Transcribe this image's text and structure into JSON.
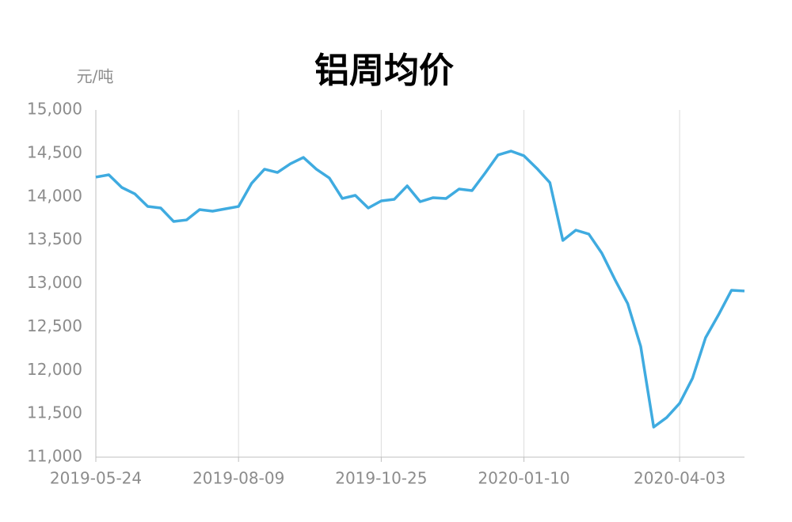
{
  "chart_data": {
    "type": "line",
    "title": "铝周均价",
    "y_label": "元/吨",
    "x": [
      "2019-05-24",
      "2019-05-31",
      "2019-06-07",
      "2019-06-14",
      "2019-06-21",
      "2019-06-28",
      "2019-07-05",
      "2019-07-12",
      "2019-07-19",
      "2019-07-26",
      "2019-08-02",
      "2019-08-09",
      "2019-08-16",
      "2019-08-23",
      "2019-08-30",
      "2019-09-06",
      "2019-09-13",
      "2019-09-20",
      "2019-09-27",
      "2019-10-04",
      "2019-10-11",
      "2019-10-18",
      "2019-10-25",
      "2019-11-01",
      "2019-11-08",
      "2019-11-15",
      "2019-11-22",
      "2019-11-29",
      "2019-12-06",
      "2019-12-13",
      "2019-12-20",
      "2019-12-27",
      "2020-01-03",
      "2020-01-10",
      "2020-01-17",
      "2020-01-24",
      "2020-01-31",
      "2020-02-07",
      "2020-02-14",
      "2020-02-21",
      "2020-02-28",
      "2020-03-06",
      "2020-03-13",
      "2020-03-20",
      "2020-03-27",
      "2020-04-03",
      "2020-04-10",
      "2020-04-17",
      "2020-04-24",
      "2020-05-01",
      "2020-05-08"
    ],
    "series": [
      {
        "color": "#3fabe0",
        "values": [
          14226,
          14253,
          14107,
          14034,
          13888,
          13870,
          13715,
          13733,
          13852,
          13834,
          13861,
          13888,
          14153,
          14317,
          14280,
          14380,
          14453,
          14317,
          14216,
          13980,
          14016,
          13870,
          13952,
          13970,
          14125,
          13943,
          13989,
          13980,
          14089,
          14071,
          14271,
          14481,
          14526,
          14472,
          14326,
          14162,
          13497,
          13615,
          13570,
          13351,
          13050,
          12768,
          12276,
          11346,
          11456,
          11620,
          11911,
          12376,
          12640,
          12923,
          12914
        ]
      }
    ],
    "xlim": [
      "2019-05-24",
      "2020-05-08"
    ],
    "xticks": [
      "2019-05-24",
      "2019-08-09",
      "2019-10-25",
      "2020-01-10",
      "2020-04-03"
    ],
    "ylim": [
      11000,
      15000
    ],
    "yticks": [
      {
        "value": 11000,
        "label": "11,000"
      },
      {
        "value": 11500,
        "label": "11,500"
      },
      {
        "value": 12000,
        "label": "12,000"
      },
      {
        "value": 12500,
        "label": "12,500"
      },
      {
        "value": 13000,
        "label": "13,000"
      },
      {
        "value": 13500,
        "label": "13,500"
      },
      {
        "value": 14000,
        "label": "14,000"
      },
      {
        "value": 14500,
        "label": "14,500"
      },
      {
        "value": 15000,
        "label": "15,000"
      }
    ],
    "grid": true
  }
}
